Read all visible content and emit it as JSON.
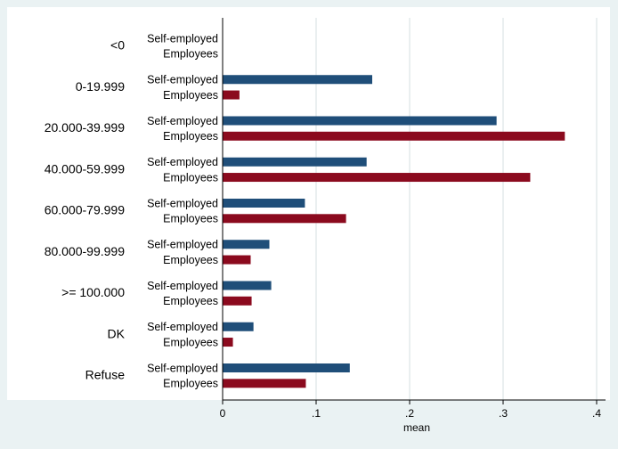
{
  "chart_data": {
    "type": "bar",
    "orientation": "horizontal",
    "categories": [
      "<0",
      "0-19.999",
      "20.000-39.999",
      "40.000-59.999",
      "60.000-79.999",
      "80.000-99.999",
      ">= 100.000",
      "DK",
      "Refuse"
    ],
    "series": [
      {
        "name": "Self-employed",
        "color": "#1f4e79",
        "values": [
          0,
          0.16,
          0.293,
          0.154,
          0.088,
          0.05,
          0.052,
          0.033,
          0.136
        ]
      },
      {
        "name": "Employees",
        "color": "#8b0a1e",
        "values": [
          0,
          0.018,
          0.366,
          0.329,
          0.132,
          0.03,
          0.031,
          0.011,
          0.089
        ]
      }
    ],
    "xlabel": "mean",
    "xlim": [
      0,
      0.4
    ],
    "xticks": [
      {
        "value": 0,
        "label": "0"
      },
      {
        "value": 0.1,
        "label": ".1"
      },
      {
        "value": 0.2,
        "label": ".2"
      },
      {
        "value": 0.3,
        "label": ".3"
      },
      {
        "value": 0.4,
        "label": ".4"
      }
    ],
    "grid": true,
    "legend": "none"
  }
}
